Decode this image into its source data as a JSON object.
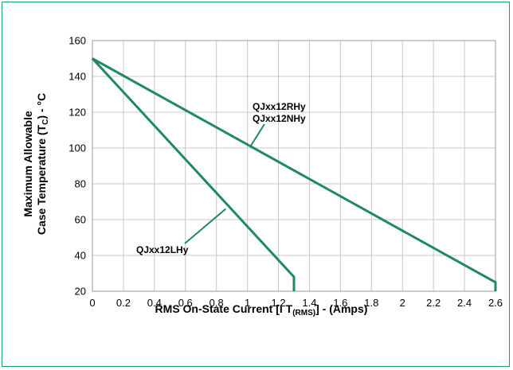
{
  "chart_data": {
    "type": "line",
    "title": "",
    "xlabel": {
      "main": "RMS On-State Current [I T",
      "sub": "(RMS)",
      "tail": "] - (Amps)"
    },
    "ylabel": {
      "line1": "Maximum Allowable",
      "line2_main": "Case Temperature (T",
      "line2_sub": "C",
      "line2_tail": ") - °C"
    },
    "xlim": [
      0,
      2.6
    ],
    "ylim": [
      20,
      160
    ],
    "xticks": [
      "0",
      "0.2",
      "0.4",
      "0.6",
      "0.8",
      "1",
      "1.2",
      "1.4",
      "1.6",
      "1.8",
      "2",
      "2.2",
      "2.4",
      "2.6"
    ],
    "yticks": [
      "20",
      "40",
      "60",
      "80",
      "100",
      "120",
      "140",
      "160"
    ],
    "grid": true,
    "series": [
      {
        "name": "QJxx12LHy",
        "x": [
          0,
          1.3,
          1.3
        ],
        "y": [
          150,
          28,
          20
        ]
      },
      {
        "name": "QJxx12RHy / QJxx12NHy",
        "x": [
          0,
          2.6,
          2.6
        ],
        "y": [
          150,
          25,
          20
        ]
      }
    ],
    "annotations": [
      "QJxx12RHy",
      "QJxx12NHy",
      "QJxx12LHy"
    ],
    "line_color": "#1f8a5e",
    "frame_color": "#1f9a6e"
  }
}
